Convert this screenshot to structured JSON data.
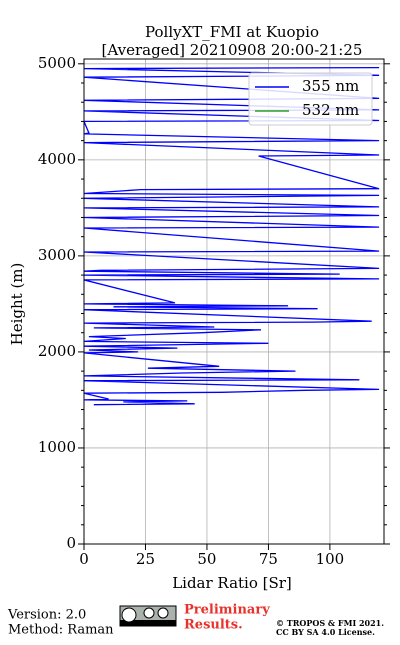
{
  "chart_data": {
    "type": "line",
    "title": "PollyXT_FMI at Kuopio",
    "subtitle": "[Averaged] 20210908 20:00-21:25",
    "xlabel": "Lidar Ratio [Sr]",
    "ylabel": "Height (m)",
    "xlim": [
      0,
      122
    ],
    "xticks": [
      0,
      25,
      50,
      75,
      100
    ],
    "ylim": [
      0,
      5050
    ],
    "yticks": [
      0,
      1000,
      2000,
      3000,
      4000,
      5000
    ],
    "yminorticks": [
      200,
      400,
      600,
      800,
      1200,
      1400,
      1600,
      1800,
      2200,
      2400,
      2600,
      2800,
      3200,
      3400,
      3600,
      3800,
      4200,
      4400,
      4600,
      4800
    ],
    "grid": true,
    "legend": "upper right",
    "series": [
      {
        "name": "355 nm",
        "color": "#0000ff",
        "x": [
          4,
          45,
          16,
          42,
          0,
          10,
          0,
          56,
          90,
          120,
          0,
          112,
          0,
          40,
          86,
          26,
          55,
          0,
          22,
          2,
          38,
          0,
          75,
          0,
          17,
          2,
          48,
          72,
          4,
          53,
          0,
          93,
          117,
          0,
          95,
          12,
          83,
          0,
          37,
          0,
          120,
          0,
          104,
          0,
          7,
          120,
          0,
          120,
          0,
          120,
          0,
          120,
          0,
          120,
          0,
          120,
          0,
          23,
          120,
          71,
          120,
          0,
          120,
          0,
          2,
          0,
          120,
          0,
          120,
          0,
          120,
          0,
          120,
          0,
          120
        ],
        "y": [
          1450,
          1460,
          1480,
          1490,
          1500,
          1510,
          1570,
          1580,
          1600,
          1610,
          1700,
          1710,
          1750,
          1780,
          1800,
          1830,
          1850,
          1990,
          2000,
          2020,
          2040,
          2060,
          2090,
          2110,
          2140,
          2160,
          2200,
          2230,
          2250,
          2260,
          2300,
          2310,
          2320,
          2440,
          2450,
          2470,
          2480,
          2500,
          2510,
          2750,
          2760,
          2800,
          2810,
          2840,
          2850,
          2870,
          3040,
          3050,
          3290,
          3300,
          3400,
          3420,
          3500,
          3510,
          3600,
          3630,
          3650,
          3690,
          3700,
          4040,
          4050,
          4180,
          4200,
          4270,
          4280,
          4400,
          4410,
          4510,
          4520,
          4620,
          4640,
          4860,
          4880,
          4950,
          4960
        ]
      },
      {
        "name": "532 nm",
        "color": "#2ca02c",
        "x": [],
        "y": []
      }
    ]
  },
  "footer": {
    "version": "Version: 2.0",
    "method": "Method: Raman",
    "preliminary": [
      "Preliminary",
      "Results."
    ],
    "copyright": [
      "© TROPOS & FMI 2021.",
      "CC BY SA 4.0 License."
    ]
  }
}
